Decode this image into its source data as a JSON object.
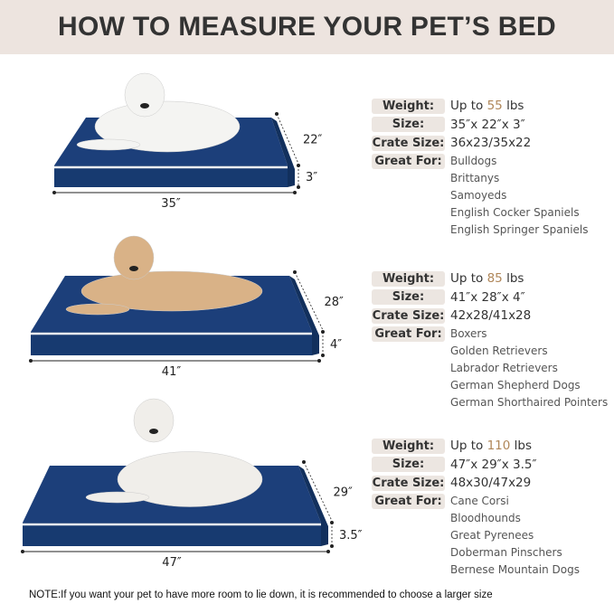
{
  "title": "HOW TO MEASURE YOUR PET’S BED",
  "labels": {
    "weight": "Weight:",
    "size": "Size:",
    "crate": "Crate Size:",
    "great": "Great For:"
  },
  "beds": [
    {
      "weight_prefix": "Up to ",
      "weight_num": "55",
      "weight_unit": " lbs",
      "size": "35″x 22″x 3″",
      "crate": "36x23/35x22",
      "breeds": [
        "Bulldogs",
        "Brittanys",
        "Samoyeds",
        "English Cocker Spaniels",
        "English Springer Spaniels"
      ],
      "dims": {
        "length": "35″",
        "width": "22″",
        "height": "3″"
      },
      "dog": "white samoyed"
    },
    {
      "weight_prefix": "Up to ",
      "weight_num": "85",
      "weight_unit": " lbs",
      "size": "41″x 28″x 4″",
      "crate": "42x28/41x28",
      "breeds": [
        "Boxers",
        "Golden Retrievers",
        "Labrador Retrievers",
        "German Shepherd Dogs",
        "German Shorthaired Pointers"
      ],
      "dims": {
        "length": "41″",
        "width": "28″",
        "height": "4″"
      },
      "dog": "golden retriever"
    },
    {
      "weight_prefix": "Up to ",
      "weight_num": "110",
      "weight_unit": " lbs",
      "size": "47″x 29″x 3.5″",
      "crate": "48x30/47x29",
      "breeds": [
        "Cane Corsi",
        "Bloodhounds",
        "Great Pyrenees",
        "Doberman Pinschers",
        "Bernese Mountain Dogs"
      ],
      "dims": {
        "length": "47″",
        "width": "29″",
        "height": "3.5″"
      },
      "dog": "large white mountain dog"
    }
  ],
  "colors": {
    "bed": "#1c3f7a",
    "piping": "#f2f2f2",
    "header_bg": "#ede4df",
    "label_bg": "#ece6e1",
    "accent": "#b0875a"
  },
  "note": "NOTE:If you want your pet to have more room to lie down, it is recommended to choose a larger size"
}
